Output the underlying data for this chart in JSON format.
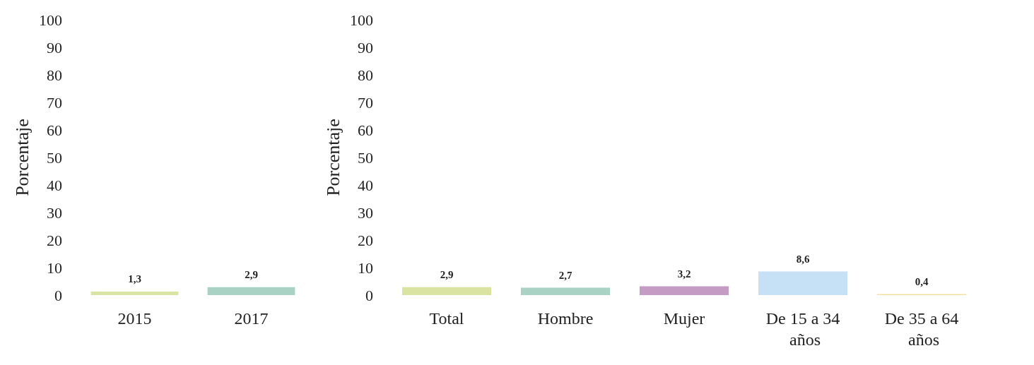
{
  "chart_data": [
    {
      "type": "bar",
      "ylabel": "Porcentaje",
      "categories": [
        "2015",
        "2017"
      ],
      "values": [
        1.3,
        2.9
      ],
      "colors": [
        "#dae3a1",
        "#a9d1c4"
      ],
      "value_labels": [
        "1,3",
        "2,9"
      ],
      "ylim": [
        0,
        100
      ],
      "yticks": [
        0,
        10,
        20,
        30,
        40,
        50,
        60,
        70,
        80,
        90,
        100
      ]
    },
    {
      "type": "bar",
      "ylabel": "Porcentaje",
      "categories": [
        "Total",
        "Hombre",
        "Mujer",
        "De 15 a 34 años",
        "De 35 a 64 años"
      ],
      "values": [
        2.9,
        2.7,
        3.2,
        8.6,
        0.4
      ],
      "colors": [
        "#dae3a1",
        "#a9d1c4",
        "#c39bc3",
        "#c6e0f5",
        "#f6e2a3"
      ],
      "value_labels": [
        "2,9",
        "2,7",
        "3,2",
        "8,6",
        "0,4"
      ],
      "ylim": [
        0,
        100
      ],
      "yticks": [
        0,
        10,
        20,
        30,
        40,
        50,
        60,
        70,
        80,
        90,
        100
      ]
    }
  ]
}
